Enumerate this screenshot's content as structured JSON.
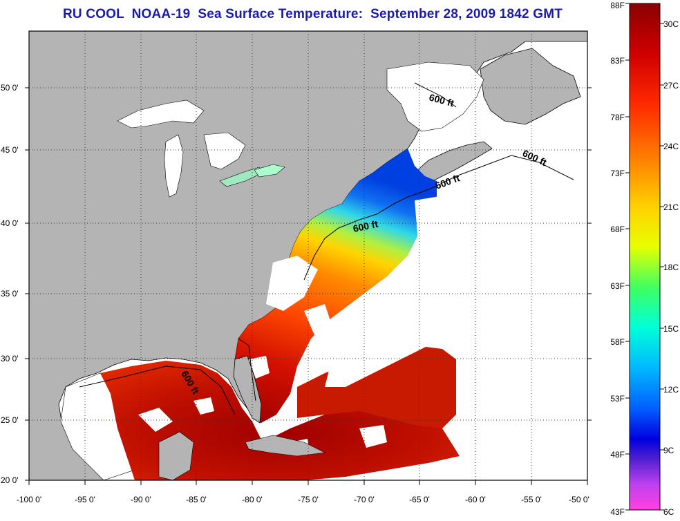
{
  "title": "RU COOL  NOAA-19  Sea Surface Temperature:  September 28, 2009 1842 GMT",
  "colors": {
    "land": "#b4b4b4",
    "cloud": "#ffffff",
    "grid": "#333333",
    "title": "#1a1aa8"
  },
  "axes": {
    "x_ticks": [
      "-100 0'",
      "-95 0'",
      "-90 0'",
      "-85 0'",
      "-80 0'",
      "-75 0'",
      "-70 0'",
      "-65 0'",
      "-60 0'",
      "-55 0'",
      "-50 0'"
    ],
    "y_ticks": [
      "50 0'",
      "45 0'",
      "40 0'",
      "35 0'",
      "30 0'",
      "25 0'",
      "20 0'"
    ]
  },
  "contours": {
    "label": "600 ft",
    "count": 5
  },
  "colorbar": {
    "fahrenheit": [
      "88F",
      "83F",
      "78F",
      "73F",
      "68F",
      "63F",
      "58F",
      "53F",
      "48F",
      "43F"
    ],
    "celsius": [
      "30C",
      "27C",
      "24C",
      "21C",
      "18C",
      "15C",
      "12C",
      "9C",
      "6C"
    ]
  }
}
